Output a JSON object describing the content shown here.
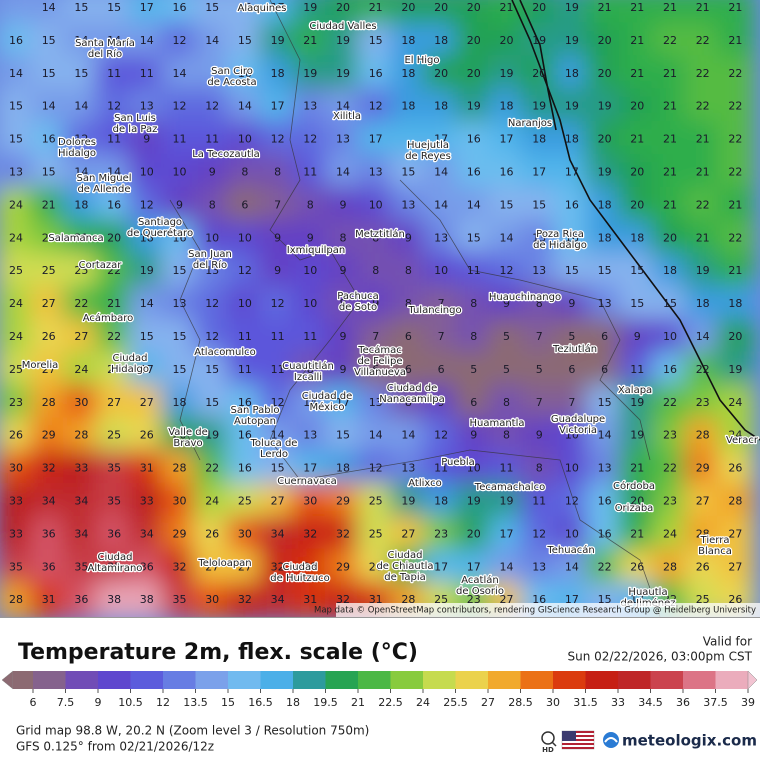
{
  "map": {
    "grid_values": [
      [
        null,
        14,
        15,
        15,
        17,
        16,
        15,
        15,
        17,
        19,
        20,
        21,
        20,
        20,
        20,
        21,
        20,
        19,
        21,
        21,
        21,
        21,
        21
      ],
      [
        16,
        15,
        14,
        14,
        14,
        12,
        14,
        15,
        19,
        21,
        19,
        15,
        18,
        18,
        20,
        20,
        19,
        19,
        20,
        21,
        22,
        22,
        21
      ],
      [
        14,
        15,
        15,
        11,
        11,
        14,
        null,
        16,
        18,
        19,
        19,
        16,
        18,
        20,
        20,
        19,
        20,
        18,
        20,
        21,
        21,
        22,
        22
      ],
      [
        15,
        14,
        14,
        12,
        13,
        12,
        12,
        14,
        17,
        13,
        14,
        12,
        18,
        18,
        19,
        18,
        19,
        19,
        19,
        20,
        21,
        22,
        22
      ],
      [
        15,
        16,
        12,
        11,
        9,
        11,
        11,
        10,
        12,
        12,
        13,
        17,
        null,
        17,
        16,
        17,
        18,
        18,
        20,
        21,
        21,
        21,
        22
      ],
      [
        13,
        15,
        14,
        14,
        10,
        10,
        9,
        8,
        8,
        11,
        14,
        13,
        15,
        14,
        16,
        16,
        17,
        17,
        19,
        20,
        21,
        21,
        22
      ],
      [
        24,
        21,
        18,
        16,
        12,
        9,
        8,
        6,
        7,
        8,
        9,
        10,
        13,
        14,
        14,
        15,
        15,
        16,
        18,
        20,
        21,
        22,
        21
      ],
      [
        24,
        23,
        21,
        20,
        18,
        16,
        10,
        10,
        9,
        9,
        8,
        8,
        9,
        13,
        15,
        14,
        13,
        16,
        18,
        18,
        20,
        21,
        22
      ],
      [
        25,
        25,
        25,
        22,
        19,
        15,
        13,
        12,
        9,
        10,
        9,
        8,
        8,
        10,
        11,
        12,
        13,
        15,
        15,
        15,
        18,
        19,
        21
      ],
      [
        24,
        27,
        22,
        21,
        14,
        13,
        12,
        10,
        12,
        10,
        8,
        9,
        8,
        7,
        8,
        9,
        8,
        9,
        13,
        15,
        15,
        18,
        18
      ],
      [
        24,
        26,
        27,
        22,
        15,
        15,
        12,
        11,
        11,
        11,
        9,
        7,
        6,
        7,
        8,
        5,
        7,
        5,
        6,
        9,
        10,
        14,
        20
      ],
      [
        25,
        27,
        24,
        25,
        17,
        15,
        15,
        11,
        11,
        8,
        9,
        6,
        6,
        6,
        5,
        5,
        5,
        6,
        6,
        11,
        16,
        22,
        19
      ],
      [
        23,
        28,
        30,
        27,
        27,
        18,
        15,
        16,
        12,
        14,
        17,
        13,
        8,
        9,
        6,
        8,
        7,
        7,
        15,
        19,
        22,
        23,
        24
      ],
      [
        26,
        29,
        28,
        25,
        26,
        20,
        19,
        16,
        14,
        13,
        15,
        14,
        14,
        12,
        9,
        8,
        9,
        10,
        14,
        19,
        23,
        28,
        24
      ],
      [
        30,
        32,
        33,
        35,
        31,
        28,
        22,
        16,
        15,
        17,
        18,
        12,
        13,
        11,
        10,
        11,
        8,
        10,
        13,
        21,
        22,
        29,
        26
      ],
      [
        33,
        34,
        34,
        35,
        33,
        30,
        24,
        25,
        27,
        30,
        29,
        25,
        19,
        18,
        19,
        19,
        11,
        12,
        16,
        20,
        23,
        27,
        28
      ],
      [
        33,
        36,
        34,
        36,
        34,
        29,
        26,
        30,
        34,
        32,
        32,
        25,
        27,
        23,
        20,
        17,
        12,
        10,
        16,
        21,
        24,
        28,
        27
      ],
      [
        35,
        36,
        35,
        35,
        36,
        32,
        27,
        27,
        32,
        31,
        29,
        26,
        21,
        17,
        17,
        14,
        13,
        14,
        22,
        26,
        28,
        26,
        27
      ],
      [
        28,
        31,
        36,
        38,
        38,
        35,
        30,
        32,
        34,
        31,
        32,
        31,
        28,
        25,
        23,
        27,
        16,
        17,
        15,
        17,
        22,
        25,
        26
      ]
    ],
    "places": [
      [
        "Alaquines"
      ],
      [
        "Ciudad Valles"
      ],
      [
        "Santa María",
        "del Río"
      ],
      [
        "El Higo"
      ],
      [
        "San Ciro",
        "de Acosta"
      ],
      [
        "San Luis",
        "de la Paz"
      ],
      [
        "Xilitla"
      ],
      [
        "Naranjos"
      ],
      [
        "Dolores",
        "Hidalgo"
      ],
      [
        "La Tecozautla"
      ],
      [
        "Huejutla",
        "de Reyes"
      ],
      [
        "San Miguel",
        "de Allende"
      ],
      [
        "Santiago",
        "de Querétaro"
      ],
      [
        "Metztitlán"
      ],
      [
        "Poza Rica",
        "de Hidalgo"
      ],
      [
        "Salamanca"
      ],
      [
        "San Juan",
        "del Río"
      ],
      [
        "Ixmiquilpan"
      ],
      [
        "Cortazar"
      ],
      [
        "Pachuca",
        "de Soto"
      ],
      [
        "Huauchinango"
      ],
      [
        "Tulancingo"
      ],
      [
        "Acámbaro"
      ],
      [
        "Atlacomulco"
      ],
      [
        "Tecámac",
        "de Felipe",
        "Villanueva"
      ],
      [
        "Teziutlán"
      ],
      [
        "Morelia"
      ],
      [
        "Ciudad",
        "Hidalgo"
      ],
      [
        "Cuautitlán",
        "Izcalli"
      ],
      [
        "Ciudad de",
        "Nanacamilpa"
      ],
      [
        "Xalapa"
      ],
      [
        "Ciudad de",
        "México"
      ],
      [
        "San Pablo",
        "Autopan"
      ],
      [
        "Huamantla"
      ],
      [
        "Guadalupe",
        "Victoria"
      ],
      [
        "Valle de",
        "Bravo"
      ],
      [
        "Toluca de",
        "Lerdo"
      ],
      [
        "Puebla"
      ],
      [
        "Veracr"
      ],
      [
        "Cuernavaca"
      ],
      [
        "Atlixco"
      ],
      [
        "Tecamachalco"
      ],
      [
        "Córdoba"
      ],
      [
        "Orizaba"
      ],
      [
        "Tierra",
        "Blanca"
      ],
      [
        "Tehuacán"
      ],
      [
        "Ciudad",
        "Altamirano"
      ],
      [
        "Teloloapan"
      ],
      [
        "Ciudad",
        "de Huitzuco"
      ],
      [
        "Ciudad",
        "de Chiautla",
        "de Tapia"
      ],
      [
        "Acatlán",
        "de Osorio"
      ],
      [
        "Huautla",
        "de Jiménez"
      ]
    ],
    "attribution": "Map data © OpenStreetMap contributors, rendering GIScience Research Group @ Heidelberg University"
  },
  "legend": {
    "title": "Temperature 2m, flex. scale (°C)",
    "ticks": [
      6,
      7.5,
      9,
      10.5,
      12,
      13.5,
      15,
      16.5,
      18,
      19.5,
      21,
      22.5,
      24,
      25.5,
      27,
      28.5,
      30,
      31.5,
      33,
      34.5,
      36,
      37.5,
      39
    ],
    "colors": [
      "#8c6a72",
      "#7e5aa8",
      "#6440c4",
      "#5a4ed8",
      "#5e6ae0",
      "#7090e6",
      "#86b2ee",
      "#5cc2f0",
      "#3a9ce0",
      "#1f9a5a",
      "#2eae4c",
      "#68c23e",
      "#a8d43e",
      "#e4e25e",
      "#f2c23c",
      "#f0901e",
      "#e6520e",
      "#d0240e",
      "#bc1a1a",
      "#c23236",
      "#d45466",
      "#e494a6",
      "#f2c4d2"
    ]
  },
  "header": {
    "valid_label": "Valid for",
    "valid_time": "Sun 02/22/2026, 03:00pm CST"
  },
  "footer": {
    "grid_info": "Grid map 98.8 W, 20.2 N (Zoom level 3 / Resolution 750m)",
    "model_info": "GFS 0.125° from  02/21/2026/12z",
    "hd": "HD",
    "brand": "meteologix.com"
  }
}
